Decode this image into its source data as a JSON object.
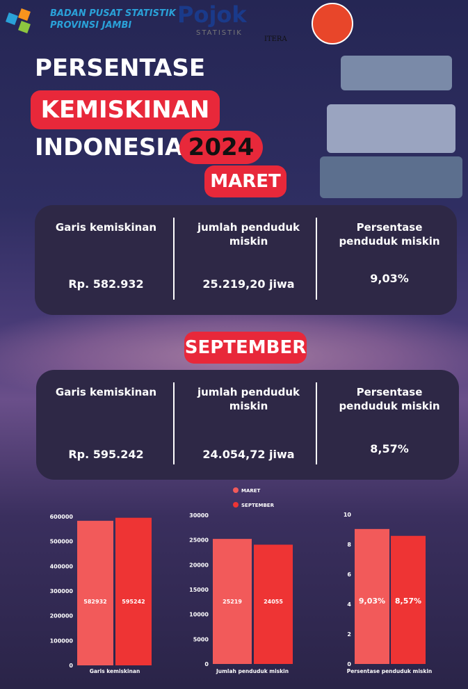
{
  "header": {
    "org_line1": "BADAN PUSAT STATISTIK",
    "org_line2": "PROVINSI JAMBI",
    "pojok": "Pojok",
    "pojok_sub": "STATISTIK",
    "itera": "ITERA"
  },
  "title": {
    "line1": "PERSENTASE",
    "line2": "KEMISKINAN",
    "line3": "INDONESIA",
    "year": "2024"
  },
  "maret": {
    "label": "MARET",
    "columns": [
      {
        "heading": "Garis kemiskinan",
        "value": "Rp. 582.932"
      },
      {
        "heading": "jumlah penduduk miskin",
        "value": "25.219,20 jiwa"
      },
      {
        "heading": "Persentase penduduk miskin",
        "value": "9,03%"
      }
    ]
  },
  "september": {
    "label": "SEPTEMBER",
    "columns": [
      {
        "heading": "Garis kemiskinan",
        "value": "Rp. 595.242"
      },
      {
        "heading": "jumlah penduduk miskin",
        "value": "24.054,72 jiwa"
      },
      {
        "heading": "Persentase penduduk miskin",
        "value": "8,57%"
      }
    ]
  },
  "chart_data": [
    {
      "type": "bar",
      "categories": [
        "Garis kemiskinan"
      ],
      "series": [
        {
          "name": "MARET",
          "color": "#f25a5a",
          "values": [
            582932
          ]
        },
        {
          "name": "SEPTEMBER",
          "color": "#ee3434",
          "values": [
            595242
          ]
        }
      ],
      "ylim": [
        0,
        600000
      ],
      "yticks": [
        0,
        100000,
        200000,
        300000,
        400000,
        500000,
        600000
      ]
    },
    {
      "type": "bar",
      "categories": [
        "Jumlah penduduk miskin"
      ],
      "series": [
        {
          "color": "#f25a5a",
          "values": [
            25219
          ]
        },
        {
          "color": "#ee3434",
          "values": [
            24055
          ]
        }
      ],
      "ylim": [
        0,
        30000
      ],
      "yticks": [
        0,
        5000,
        10000,
        15000,
        20000,
        25000,
        30000
      ]
    },
    {
      "type": "bar",
      "categories": [
        "Persentase penduduk miskin"
      ],
      "series": [
        {
          "color": "#f25a5a",
          "values": [
            9.03
          ],
          "value_labels": [
            "9,03%"
          ]
        },
        {
          "color": "#ee3434",
          "values": [
            8.57
          ],
          "value_labels": [
            "8,57%"
          ]
        }
      ],
      "ylim": [
        0,
        10
      ],
      "yticks": [
        0,
        2,
        4,
        6,
        8,
        10
      ]
    }
  ]
}
